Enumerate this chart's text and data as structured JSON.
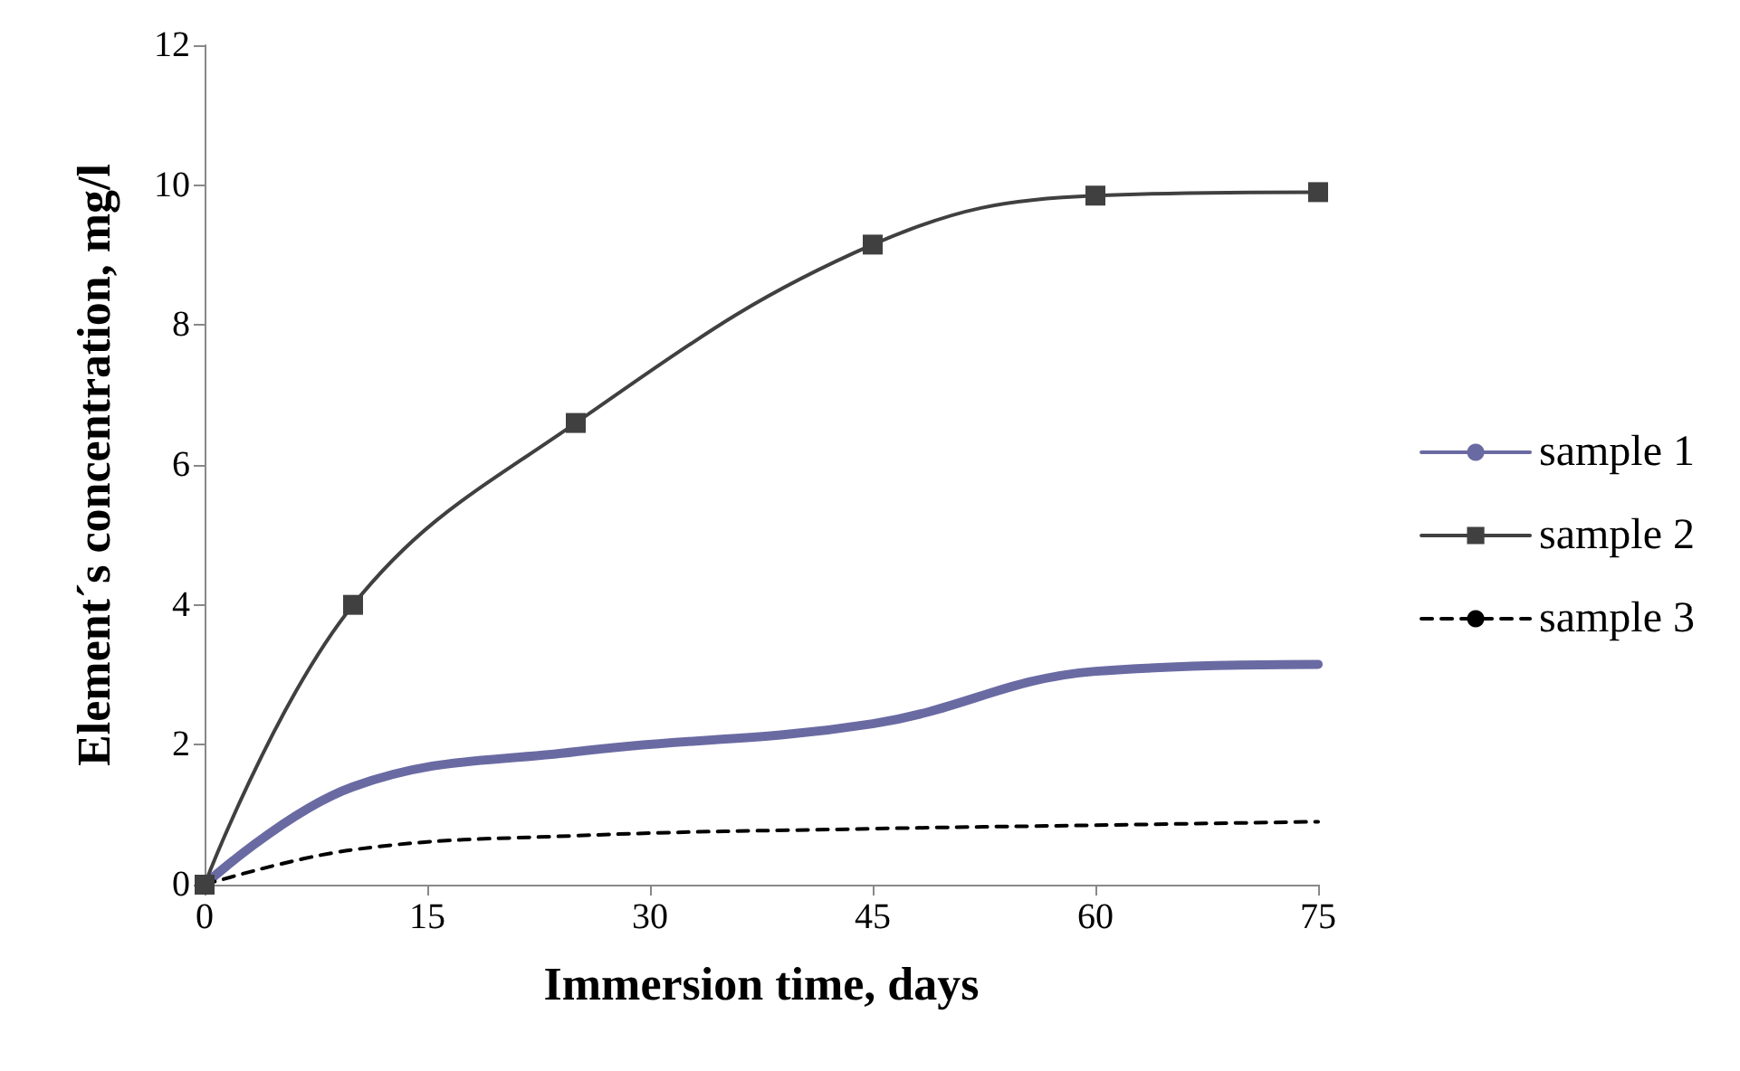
{
  "chart_data": {
    "type": "line",
    "xlabel": "Immersion time, days",
    "ylabel": "Element´s concentration, mg/l",
    "x": [
      0,
      10,
      25,
      45,
      60,
      75
    ],
    "xlim": [
      0,
      75
    ],
    "xticks": [
      0,
      15,
      30,
      45,
      60,
      75
    ],
    "ylim": [
      0,
      12
    ],
    "yticks": [
      0,
      2,
      4,
      6,
      8,
      10,
      12
    ],
    "grid": false,
    "legend": "right",
    "series": [
      {
        "name": "sample 1",
        "color": "#6a6aa3",
        "marker": "none",
        "line_style": "solid",
        "values": [
          0,
          1.4,
          1.9,
          2.3,
          3.05,
          3.15
        ]
      },
      {
        "name": "sample 2",
        "color": "#404040",
        "marker": "square",
        "line_style": "solid",
        "values": [
          0,
          4.0,
          6.6,
          9.15,
          9.85,
          9.9
        ]
      },
      {
        "name": "sample 3",
        "color": "#000000",
        "marker": "none",
        "line_style": "dashed",
        "values": [
          0,
          0.5,
          0.7,
          0.8,
          0.85,
          0.9
        ]
      }
    ]
  }
}
